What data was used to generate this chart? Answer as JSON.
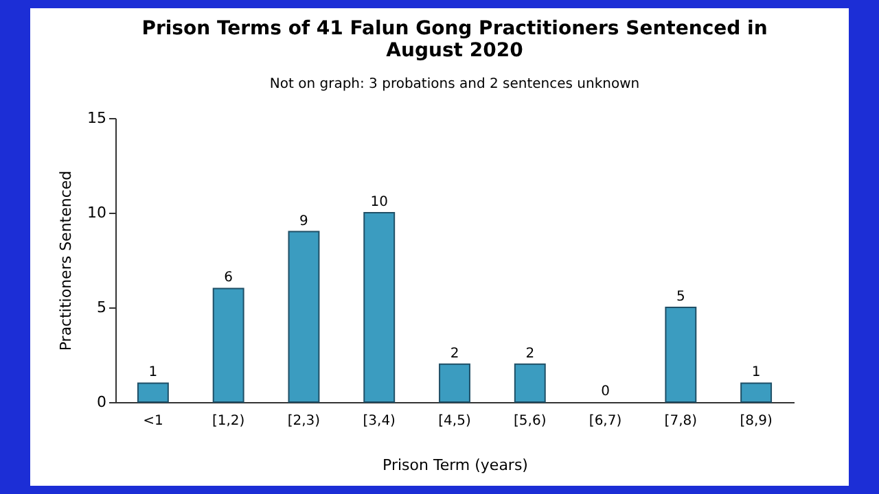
{
  "chart_data": {
    "type": "bar",
    "title": "Prison Terms of 41 Falun Gong Practitioners Sentenced in August 2020",
    "annotations": [
      "Not on graph: 3 probations and 2 sentences unknown"
    ],
    "xlabel": "Prison Term (years)",
    "ylabel": "Practitioners Sentenced",
    "categories": [
      "<1",
      "[1,2)",
      "[2,3)",
      "[3,4)",
      "[4,5)",
      "[5,6)",
      "[6,7)",
      "[7,8)",
      "[8,9)"
    ],
    "values": [
      1,
      6,
      9,
      10,
      2,
      2,
      0,
      5,
      1
    ],
    "color": "#3b9cc0",
    "ylim": [
      0,
      15
    ],
    "yticks": [
      0,
      5,
      10,
      15
    ],
    "grid": false,
    "data_labels": true
  }
}
